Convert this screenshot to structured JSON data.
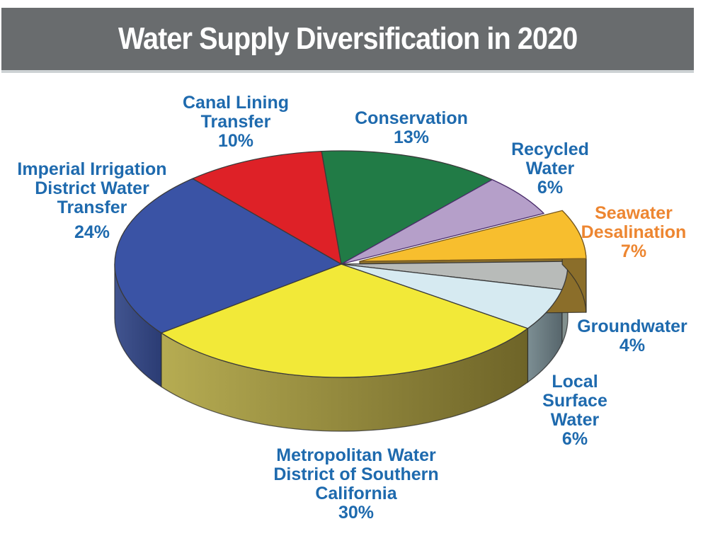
{
  "header": {
    "title": "Water Supply Diversification in 2020",
    "bg_color": "#696C6E",
    "text_color": "#FFFFFF"
  },
  "chart_data": {
    "type": "pie",
    "title": "Water Supply Diversification in 2020",
    "unit": "%",
    "total": 100,
    "style": "3d-exploded",
    "label_color_default": "#1E6AAE",
    "outline_color_default": "#3A3A3A",
    "slices": [
      {
        "id": "conservation",
        "label": "Conservation",
        "label_lines": [
          "Conservation"
        ],
        "value": 13,
        "pct_label": "13%",
        "color": "#217B46",
        "label_color": "#1E6AAE"
      },
      {
        "id": "recycled-water",
        "label": "Recycled Water",
        "label_lines": [
          "Recycled",
          "Water"
        ],
        "value": 6,
        "pct_label": "6%",
        "color": "#B59FC9",
        "outline": "#4A2C6B",
        "label_color": "#1E6AAE"
      },
      {
        "id": "seawater-desalination",
        "label": "Seawater Desalination",
        "label_lines": [
          "Seawater",
          "Desalination"
        ],
        "value": 7,
        "pct_label": "7%",
        "color": "#F7BE2E",
        "outline": "#7A5A1E",
        "wall": "#8B6E2A",
        "exploded": true,
        "label_color": "#ED8631"
      },
      {
        "id": "groundwater",
        "label": "Groundwater",
        "label_lines": [
          "Groundwater"
        ],
        "value": 4,
        "pct_label": "4%",
        "color": "#B8BBB9",
        "wall": "#82908E",
        "label_color": "#1E6AAE"
      },
      {
        "id": "local-surface-water",
        "label": "Local Surface Water",
        "label_lines": [
          "Local",
          "Surface",
          "Water"
        ],
        "value": 6,
        "pct_label": "6%",
        "color": "#D6EAF1",
        "wall_gradient": [
          "#7C8E93",
          "#57666C"
        ],
        "label_color": "#1E6AAE"
      },
      {
        "id": "metropolitan-water-district",
        "label": "Metropolitan Water District of Southern California",
        "label_lines": [
          "Metropolitan Water",
          "District of Southern",
          "California"
        ],
        "value": 30,
        "pct_label": "30%",
        "color": "#F2E938",
        "wall_gradient": [
          "#B6AC52",
          "#6E6428"
        ],
        "label_color": "#1E6AAE"
      },
      {
        "id": "imperial-irrigation-district",
        "label": "Imperial Irrigation District Water Transfer",
        "label_lines": [
          "Imperial Irrigation",
          "District Water",
          "Transfer"
        ],
        "value": 24,
        "pct_label": "24%",
        "pct_gap": true,
        "color": "#3A53A5",
        "wall_gradient": [
          "#41548F",
          "#2B3C74"
        ],
        "label_color": "#1E6AAE"
      },
      {
        "id": "canal-lining-transfer",
        "label": "Canal Lining Transfer",
        "label_lines": [
          "Canal Lining",
          "Transfer"
        ],
        "value": 10,
        "pct_label": "10%",
        "color": "#DE2127",
        "label_color": "#1E6AAE"
      }
    ]
  }
}
